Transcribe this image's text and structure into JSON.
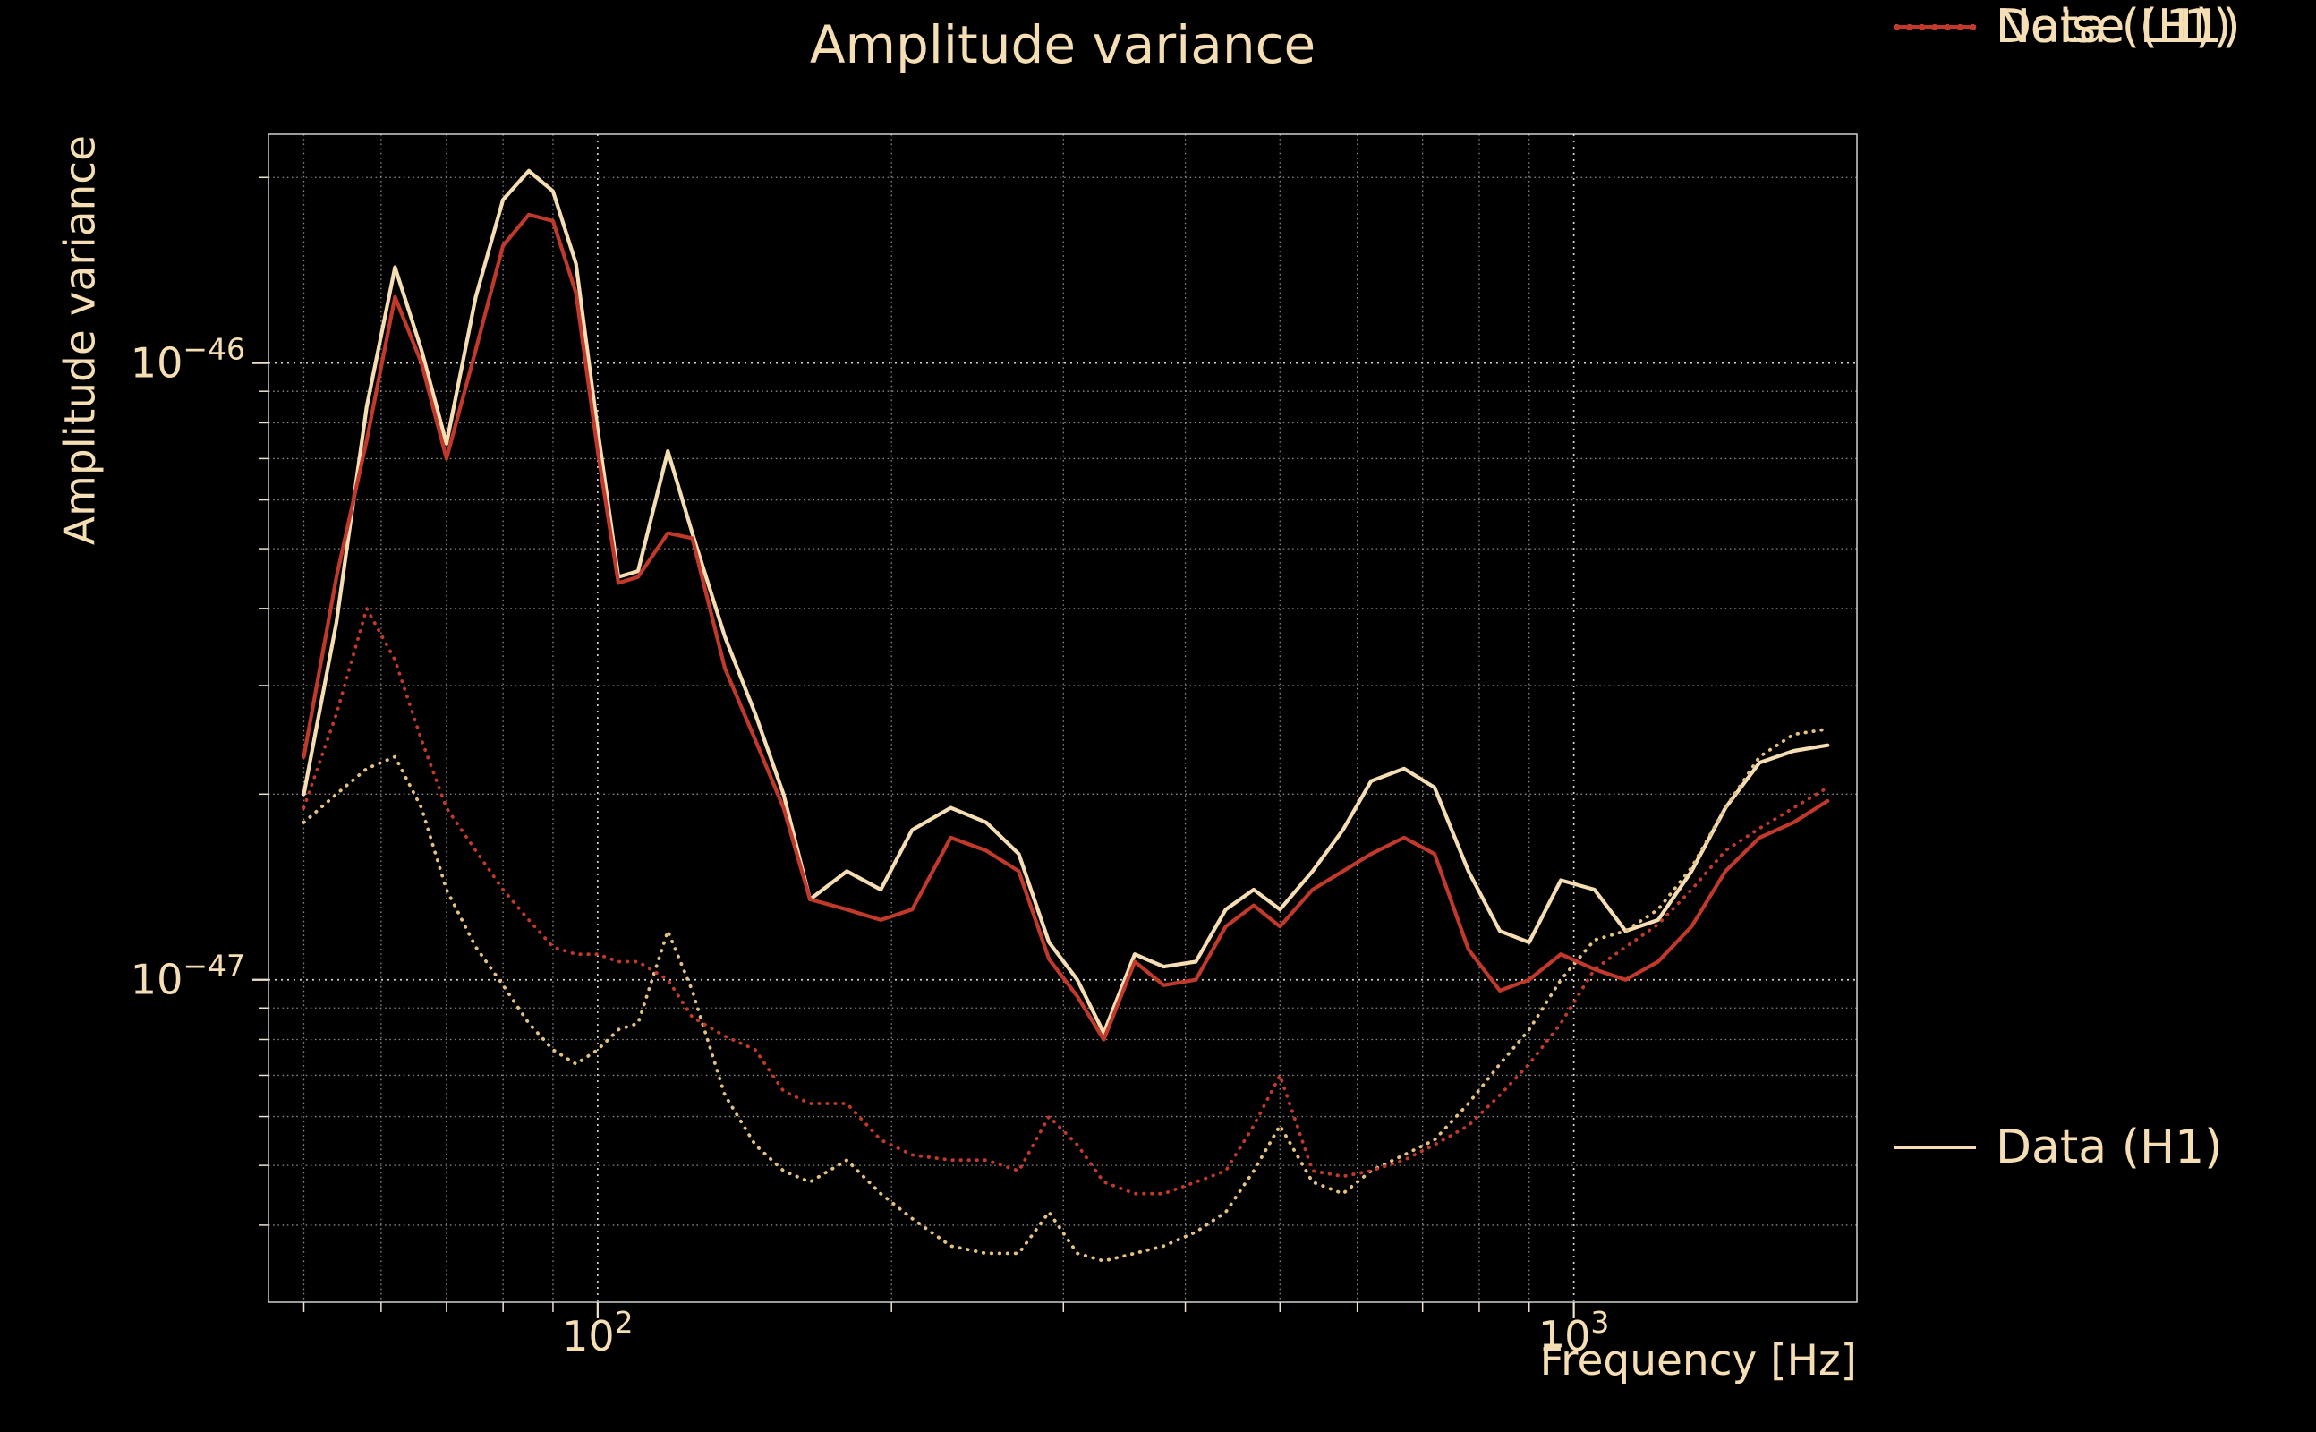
{
  "colors": {
    "background": "#000000",
    "text": "#f5deb3",
    "grid_major": "#dddddd",
    "grid_minor": "#a8a8a8",
    "spine": "#e6e6e6",
    "tick": "#eee3c8"
  },
  "chart_data": {
    "type": "line",
    "title": "Amplitude variance",
    "xlabel": "Frequency [Hz]",
    "ylabel": "Amplitude variance",
    "x_scale": "log",
    "y_scale": "log",
    "xlim": [
      46,
      1950
    ],
    "ylim": [
      3e-48,
      2.35e-46
    ],
    "grid": "both-major-and-minor, dotted",
    "legend_position": "right-outside",
    "x_major_ticks": [
      {
        "value": 100,
        "base": "10",
        "exp": "2"
      },
      {
        "value": 1000,
        "base": "10",
        "exp": "3"
      }
    ],
    "y_major_ticks": [
      {
        "value": 1e-46,
        "base": "10",
        "exp": "−46"
      },
      {
        "value": 1e-47,
        "base": "10",
        "exp": "−47"
      }
    ],
    "frequencies_hz": [
      50,
      54,
      58,
      62,
      66,
      70,
      75,
      80,
      85,
      90,
      95,
      100,
      105,
      110,
      118,
      125,
      135,
      145,
      155,
      165,
      180,
      195,
      210,
      230,
      250,
      270,
      290,
      310,
      330,
      355,
      380,
      410,
      440,
      470,
      500,
      540,
      580,
      620,
      670,
      720,
      780,
      840,
      900,
      970,
      1050,
      1130,
      1220,
      1320,
      1430,
      1550,
      1680,
      1820
    ],
    "series": [
      {
        "name": "Data (H1)",
        "color": "#f5deb3",
        "line_style": "solid",
        "values": [
          2e-47,
          3.8e-47,
          8.5e-47,
          1.43e-46,
          1.05e-46,
          7.4e-47,
          1.28e-46,
          1.84e-46,
          2.05e-46,
          1.9e-46,
          1.45e-46,
          7.8e-47,
          4.5e-47,
          4.6e-47,
          7.2e-47,
          5.3e-47,
          3.6e-47,
          2.7e-47,
          2e-47,
          1.35e-47,
          1.5e-47,
          1.4e-47,
          1.75e-47,
          1.9e-47,
          1.8e-47,
          1.6e-47,
          1.15e-47,
          1e-47,
          8.2e-48,
          1.1e-47,
          1.05e-47,
          1.07e-47,
          1.3e-47,
          1.4e-47,
          1.3e-47,
          1.5e-47,
          1.75e-47,
          2.1e-47,
          2.2e-47,
          2.05e-47,
          1.5e-47,
          1.2e-47,
          1.15e-47,
          1.45e-47,
          1.4e-47,
          1.2e-47,
          1.25e-47,
          1.5e-47,
          1.9e-47,
          2.25e-47,
          2.35e-47,
          2.4e-47
        ]
      },
      {
        "name": "Noise (H1)",
        "color": "#e3c184",
        "line_style": "dotted",
        "values": [
          1.8e-47,
          2e-47,
          2.2e-47,
          2.3e-47,
          1.9e-47,
          1.4e-47,
          1.13e-47,
          9.8e-48,
          8.5e-48,
          7.7e-48,
          7.3e-48,
          7.7e-48,
          8.3e-48,
          8.5e-48,
          1.2e-47,
          9.6e-48,
          6.5e-48,
          5.4e-48,
          4.9e-48,
          4.7e-48,
          5.1e-48,
          4.5e-48,
          4.1e-48,
          3.7e-48,
          3.6e-48,
          3.6e-48,
          4.2e-48,
          3.6e-48,
          3.5e-48,
          3.6e-48,
          3.7e-48,
          3.9e-48,
          4.2e-48,
          4.9e-48,
          5.8e-48,
          4.7e-48,
          4.5e-48,
          4.9e-48,
          5.2e-48,
          5.5e-48,
          6.3e-48,
          7.3e-48,
          8.3e-48,
          1e-47,
          1.16e-47,
          1.2e-47,
          1.3e-47,
          1.52e-47,
          1.9e-47,
          2.3e-47,
          2.5e-47,
          2.55e-47
        ]
      },
      {
        "name": "Data (L1)",
        "color": "#c1392b",
        "line_style": "solid",
        "values": [
          2.3e-47,
          4.5e-47,
          7.5e-47,
          1.28e-46,
          1e-46,
          7e-47,
          1.05e-46,
          1.55e-46,
          1.74e-46,
          1.7e-46,
          1.3e-46,
          7.2e-47,
          4.4e-47,
          4.5e-47,
          5.3e-47,
          5.2e-47,
          3.2e-47,
          2.45e-47,
          1.9e-47,
          1.35e-47,
          1.3e-47,
          1.25e-47,
          1.3e-47,
          1.7e-47,
          1.62e-47,
          1.5e-47,
          1.08e-47,
          9.4e-48,
          8e-48,
          1.07e-47,
          9.8e-48,
          1e-47,
          1.22e-47,
          1.32e-47,
          1.22e-47,
          1.4e-47,
          1.5e-47,
          1.6e-47,
          1.7e-47,
          1.6e-47,
          1.12e-47,
          9.6e-48,
          1e-47,
          1.1e-47,
          1.04e-47,
          1e-47,
          1.07e-47,
          1.22e-47,
          1.5e-47,
          1.7e-47,
          1.8e-47,
          1.95e-47
        ]
      },
      {
        "name": "Noise (L1)",
        "color": "#c1392b",
        "line_style": "dotted",
        "values": [
          1.9e-47,
          2.7e-47,
          4e-47,
          3.3e-47,
          2.45e-47,
          1.9e-47,
          1.62e-47,
          1.4e-47,
          1.25e-47,
          1.13e-47,
          1.1e-47,
          1.1e-47,
          1.07e-47,
          1.07e-47,
          1e-47,
          8.7e-48,
          8.1e-48,
          7.7e-48,
          6.6e-48,
          6.3e-48,
          6.3e-48,
          5.5e-48,
          5.2e-48,
          5.1e-48,
          5.1e-48,
          4.9e-48,
          6e-48,
          5.4e-48,
          4.7e-48,
          4.5e-48,
          4.5e-48,
          4.7e-48,
          4.9e-48,
          5.8e-48,
          7e-48,
          4.9e-48,
          4.8e-48,
          4.9e-48,
          5.1e-48,
          5.4e-48,
          5.8e-48,
          6.5e-48,
          7.3e-48,
          8.5e-48,
          1.04e-47,
          1.13e-47,
          1.23e-47,
          1.4e-47,
          1.62e-47,
          1.76e-47,
          1.9e-47,
          2.05e-47
        ]
      }
    ]
  }
}
